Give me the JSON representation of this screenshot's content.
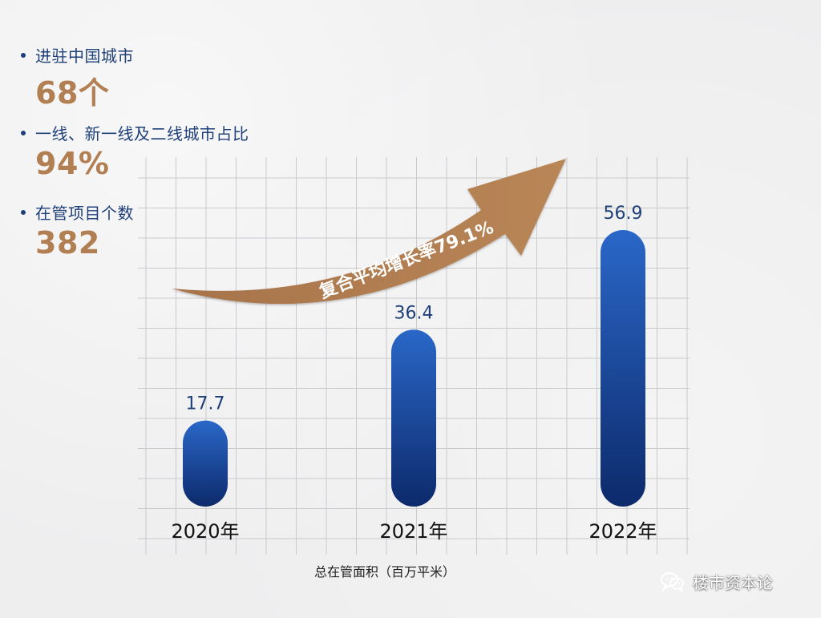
{
  "stats": [
    {
      "label": "进驻中国城市",
      "value": "68个"
    },
    {
      "label": "一线、新一线及二线城市占比",
      "value": "94%"
    },
    {
      "label": "在管项目个数",
      "value": "382"
    }
  ],
  "arrow_label": "复合平均增长率79.1%",
  "watermark": {
    "text": "楼市资本论",
    "icon": "wechat-icon"
  },
  "colors": {
    "bar_top": "#2a67c8",
    "bar_bottom": "#0d2a6b",
    "accent_brown": "#b27f53",
    "stat_label": "#1e3f78"
  },
  "chart_data": {
    "type": "bar",
    "title": "",
    "xlabel": "总在管面积（百万平米）",
    "ylabel": "",
    "categories": [
      "2020年",
      "2021年",
      "2022年"
    ],
    "values": [
      17.7,
      36.4,
      56.9
    ],
    "value_labels": [
      "17.7",
      "36.4",
      "56.9"
    ],
    "ylim": [
      0,
      60
    ],
    "grid": true,
    "legend": "none"
  }
}
